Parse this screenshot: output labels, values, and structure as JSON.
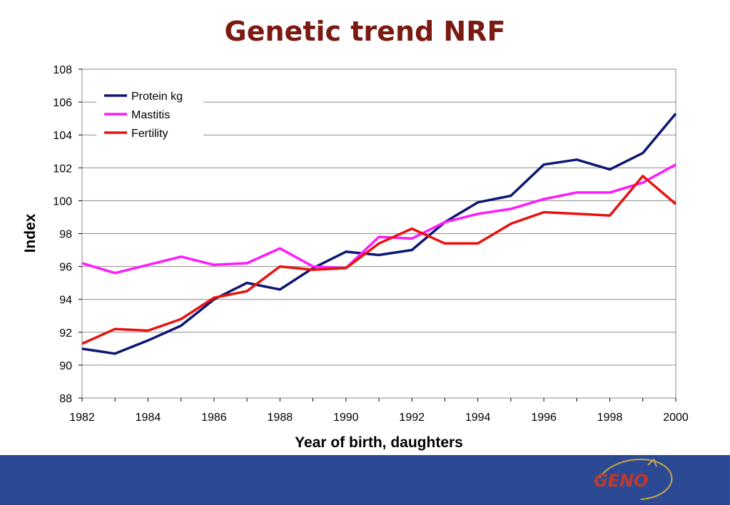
{
  "chart_data": {
    "type": "line",
    "title": "Genetic trend NRF",
    "xlabel": "Year of birth, daughters",
    "ylabel": "Index",
    "x": [
      1982,
      1983,
      1984,
      1985,
      1986,
      1987,
      1988,
      1989,
      1990,
      1991,
      1992,
      1993,
      1994,
      1995,
      1996,
      1997,
      1998,
      1999,
      2000
    ],
    "xlim": [
      1982,
      2000
    ],
    "ylim": [
      88,
      108
    ],
    "xticks": [
      1982,
      1984,
      1986,
      1988,
      1990,
      1992,
      1994,
      1996,
      1998,
      2000
    ],
    "yticks": [
      88,
      90,
      92,
      94,
      96,
      98,
      100,
      102,
      104,
      106,
      108
    ],
    "grid": "horizontal",
    "legend_position": "top-left",
    "series": [
      {
        "name": "Protein kg",
        "color": "#0d1773",
        "values": [
          91.0,
          90.7,
          91.5,
          92.4,
          94.0,
          95.0,
          94.6,
          95.9,
          96.9,
          96.7,
          97.0,
          98.7,
          99.9,
          100.3,
          102.2,
          102.5,
          101.9,
          102.9,
          105.3
        ]
      },
      {
        "name": "Mastitis",
        "color": "#ff19ff",
        "values": [
          96.2,
          95.6,
          96.1,
          96.6,
          96.1,
          96.2,
          97.1,
          96.0,
          95.9,
          97.8,
          97.7,
          98.7,
          99.2,
          99.5,
          100.1,
          100.5,
          100.5,
          101.1,
          102.2
        ]
      },
      {
        "name": "Fertility",
        "color": "#e8130f",
        "values": [
          91.3,
          92.2,
          92.1,
          92.8,
          94.1,
          94.5,
          96.0,
          95.8,
          95.9,
          97.4,
          98.3,
          97.4,
          97.4,
          98.6,
          99.3,
          99.2,
          99.1,
          101.5,
          99.8
        ]
      }
    ]
  },
  "logo": {
    "text": "GENO"
  },
  "colors": {
    "title": "#7a1a12",
    "footer": "#2c4a93"
  }
}
